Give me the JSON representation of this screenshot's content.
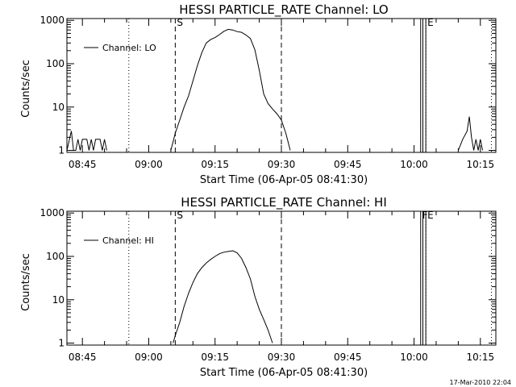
{
  "footer": {
    "stamp": "17-Mar-2010 22:04"
  },
  "chart_data": [
    {
      "type": "line",
      "title": "HESSI PARTICLE_RATE Channel: LO",
      "xlabel": "Start Time (06-Apr-05 08:41:30)",
      "ylabel": "Counts/sec",
      "y_scale": "log",
      "ylim": [
        0.9,
        1100
      ],
      "xlim_minutes_after_start": [
        0,
        97
      ],
      "x_tick_labels": [
        "08:45",
        "09:00",
        "09:15",
        "09:30",
        "09:45",
        "10:00",
        "10:15"
      ],
      "y_tick_labels": [
        "1",
        "10",
        "100",
        "1000"
      ],
      "legend": {
        "position": "top-left",
        "entries": [
          "Channel: LO"
        ]
      },
      "markers": [
        {
          "type": "dotted",
          "time": "08:55:30"
        },
        {
          "type": "dashed",
          "time": "09:06",
          "label": "S"
        },
        {
          "type": "dashed",
          "time": "09:30"
        },
        {
          "type": "solid",
          "time": "10:01:30"
        },
        {
          "type": "solid",
          "time": "10:02"
        },
        {
          "type": "dotted",
          "time": "10:02:40"
        },
        {
          "type": "solid",
          "time": "10:02:40",
          "label": "E"
        },
        {
          "type": "dotted",
          "time": "10:17:30"
        }
      ],
      "series": [
        {
          "segments": [
            [
              [
                "08:41:30",
                1
              ],
              [
                "08:42:30",
                2.8
              ],
              [
                "08:43:00",
                1
              ],
              [
                "08:43:30",
                1
              ],
              [
                "08:44:00",
                1.8
              ],
              [
                "08:44:30",
                1
              ],
              [
                "08:45:00",
                1.8
              ],
              [
                "08:45:30",
                1.8
              ],
              [
                "08:46:00",
                1.8
              ],
              [
                "08:46:30",
                1
              ],
              [
                "08:47:00",
                1.8
              ],
              [
                "08:47:30",
                1
              ],
              [
                "08:48:00",
                1.8
              ],
              [
                "08:48:30",
                1.8
              ],
              [
                "08:49:00",
                1.8
              ],
              [
                "08:49:30",
                1
              ],
              [
                "08:50:00",
                1.8
              ],
              [
                "08:50:30",
                1
              ]
            ],
            [
              [
                "09:05:00",
                1
              ],
              [
                "09:06:00",
                2.5
              ],
              [
                "09:07:00",
                5
              ],
              [
                "09:08:00",
                10
              ],
              [
                "09:09:00",
                18
              ],
              [
                "09:10:00",
                40
              ],
              [
                "09:11:00",
                90
              ],
              [
                "09:12:00",
                180
              ],
              [
                "09:13:00",
                300
              ],
              [
                "09:14:00",
                360
              ],
              [
                "09:15:00",
                400
              ],
              [
                "09:16:00",
                470
              ],
              [
                "09:17:00",
                560
              ],
              [
                "09:18:00",
                620
              ],
              [
                "09:19:00",
                600
              ],
              [
                "09:20:00",
                550
              ],
              [
                "09:21:00",
                530
              ],
              [
                "09:22:00",
                460
              ],
              [
                "09:23:00",
                380
              ],
              [
                "09:24:00",
                210
              ],
              [
                "09:25:00",
                70
              ],
              [
                "09:26:00",
                20
              ],
              [
                "09:27:00",
                12
              ],
              [
                "09:28:00",
                9
              ],
              [
                "09:29:00",
                7
              ],
              [
                "09:30:00",
                5
              ],
              [
                "09:31:00",
                2.5
              ],
              [
                "09:32:00",
                1
              ]
            ],
            [
              [
                "10:10:00",
                1
              ],
              [
                "10:11:00",
                1.8
              ],
              [
                "10:12:00",
                2.8
              ],
              [
                "10:12:30",
                6
              ],
              [
                "10:13:00",
                2
              ],
              [
                "10:13:30",
                1
              ],
              [
                "10:14:00",
                1.8
              ],
              [
                "10:14:30",
                1
              ],
              [
                "10:15:00",
                1.8
              ],
              [
                "10:15:30",
                1
              ]
            ]
          ]
        }
      ]
    },
    {
      "type": "line",
      "title": "HESSI PARTICLE_RATE Channel: HI",
      "xlabel": "Start Time (06-Apr-05 08:41:30)",
      "ylabel": "Counts/sec",
      "y_scale": "log",
      "ylim": [
        0.9,
        1100
      ],
      "xlim_minutes_after_start": [
        0,
        97
      ],
      "x_tick_labels": [
        "08:45",
        "09:00",
        "09:15",
        "09:30",
        "09:45",
        "10:00",
        "10:15"
      ],
      "y_tick_labels": [
        "1",
        "10",
        "100",
        "1000"
      ],
      "legend": {
        "position": "top-left",
        "entries": [
          "Channel: HI"
        ]
      },
      "markers": [
        {
          "type": "dotted",
          "time": "08:55:30"
        },
        {
          "type": "dashed",
          "time": "09:06",
          "label": "S"
        },
        {
          "type": "dashed",
          "time": "09:30"
        },
        {
          "type": "solid",
          "time": "10:01:30",
          "label": "F"
        },
        {
          "type": "solid",
          "time": "10:02"
        },
        {
          "type": "dotted",
          "time": "10:02:40"
        },
        {
          "type": "solid",
          "time": "10:02:40",
          "label": "E"
        },
        {
          "type": "dotted",
          "time": "10:17:30"
        }
      ],
      "series": [
        {
          "segments": [
            [
              [
                "09:05:30",
                1
              ],
              [
                "09:06:00",
                1.5
              ],
              [
                "09:07:00",
                3
              ],
              [
                "09:08:00",
                7
              ],
              [
                "09:09:00",
                14
              ],
              [
                "09:10:00",
                25
              ],
              [
                "09:11:00",
                40
              ],
              [
                "09:12:00",
                55
              ],
              [
                "09:13:00",
                70
              ],
              [
                "09:14:00",
                85
              ],
              [
                "09:15:00",
                100
              ],
              [
                "09:16:00",
                115
              ],
              [
                "09:17:00",
                125
              ],
              [
                "09:18:00",
                130
              ],
              [
                "09:19:00",
                135
              ],
              [
                "09:20:00",
                120
              ],
              [
                "09:21:00",
                90
              ],
              [
                "09:22:00",
                55
              ],
              [
                "09:23:00",
                30
              ],
              [
                "09:24:00",
                12
              ],
              [
                "09:25:00",
                6
              ],
              [
                "09:26:00",
                3.5
              ],
              [
                "09:27:00",
                2
              ],
              [
                "09:28:00",
                1
              ]
            ]
          ]
        }
      ]
    }
  ]
}
